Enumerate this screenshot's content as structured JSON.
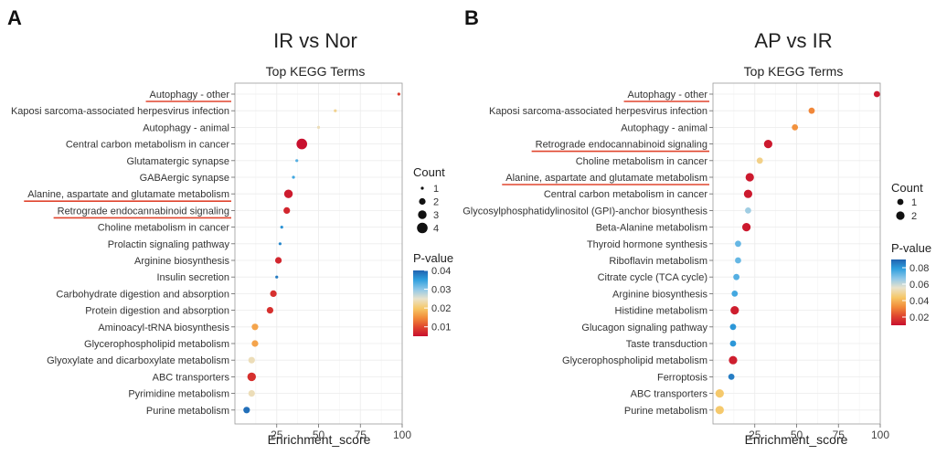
{
  "chart_data": [
    {
      "panel": "A",
      "type": "scatter",
      "title": "IR vs Nor",
      "subtitle": "Top KEGG Terms",
      "xlabel": "Enrichment_score",
      "xlim": [
        0,
        100
      ],
      "xticks": [
        25,
        50,
        75,
        100
      ],
      "count_legend_title": "Count",
      "count_levels": [
        1,
        2,
        3,
        4
      ],
      "pvalue_legend_title": "P-value",
      "pvalue_range": [
        0.005,
        0.04
      ],
      "pvalue_ticks": [
        0.04,
        0.03,
        0.02,
        0.01
      ],
      "points": [
        {
          "term": "Autophagy - other",
          "score": 98,
          "count": 1,
          "pvalue": 0.009,
          "highlight": true
        },
        {
          "term": "Kaposi sarcoma-associated herpesvirus infection",
          "score": 60,
          "count": 1,
          "pvalue": 0.022,
          "highlight": false
        },
        {
          "term": "Autophagy - animal",
          "score": 50,
          "count": 1,
          "pvalue": 0.024,
          "highlight": false
        },
        {
          "term": "Central carbon metabolism in cancer",
          "score": 40,
          "count": 4,
          "pvalue": 0.005,
          "highlight": false
        },
        {
          "term": "Glutamatergic synapse",
          "score": 37,
          "count": 1,
          "pvalue": 0.033,
          "highlight": false
        },
        {
          "term": "GABAergic synapse",
          "score": 35,
          "count": 1,
          "pvalue": 0.034,
          "highlight": false
        },
        {
          "term": "Alanine, aspartate and glutamate metabolism",
          "score": 32,
          "count": 3,
          "pvalue": 0.006,
          "highlight": true
        },
        {
          "term": "Retrograde endocannabinoid signaling",
          "score": 31,
          "count": 2,
          "pvalue": 0.007,
          "highlight": true
        },
        {
          "term": "Choline metabolism in cancer",
          "score": 28,
          "count": 1,
          "pvalue": 0.036,
          "highlight": false
        },
        {
          "term": "Prolactin signaling pathway",
          "score": 27,
          "count": 1,
          "pvalue": 0.037,
          "highlight": false
        },
        {
          "term": "Arginine biosynthesis",
          "score": 26,
          "count": 2,
          "pvalue": 0.007,
          "highlight": false
        },
        {
          "term": "Insulin secretion",
          "score": 25,
          "count": 1,
          "pvalue": 0.038,
          "highlight": false
        },
        {
          "term": "Carbohydrate digestion and absorption",
          "score": 23,
          "count": 2,
          "pvalue": 0.008,
          "highlight": false
        },
        {
          "term": "Protein digestion and absorption",
          "score": 21,
          "count": 2,
          "pvalue": 0.008,
          "highlight": false
        },
        {
          "term": "Aminoacyl-tRNA biosynthesis",
          "score": 12,
          "count": 2,
          "pvalue": 0.017,
          "highlight": false
        },
        {
          "term": "Glycerophospholipid metabolism",
          "score": 12,
          "count": 2,
          "pvalue": 0.017,
          "highlight": false
        },
        {
          "term": "Glyoxylate and dicarboxylate metabolism",
          "score": 10,
          "count": 2,
          "pvalue": 0.024,
          "highlight": false
        },
        {
          "term": "ABC transporters",
          "score": 10,
          "count": 3,
          "pvalue": 0.008,
          "highlight": false
        },
        {
          "term": "Pyrimidine metabolism",
          "score": 10,
          "count": 2,
          "pvalue": 0.024,
          "highlight": false
        },
        {
          "term": "Purine metabolism",
          "score": 7,
          "count": 2,
          "pvalue": 0.039,
          "highlight": false
        }
      ]
    },
    {
      "panel": "B",
      "type": "scatter",
      "title": "AP vs IR",
      "subtitle": "Top KEGG Terms",
      "xlabel": "Enrichment_score",
      "xlim": [
        0,
        100
      ],
      "xticks": [
        25,
        50,
        75,
        100
      ],
      "count_legend_title": "Count",
      "count_levels": [
        1,
        2
      ],
      "pvalue_legend_title": "P-value",
      "pvalue_range": [
        0.01,
        0.09
      ],
      "pvalue_ticks": [
        0.08,
        0.06,
        0.04,
        0.02
      ],
      "points": [
        {
          "term": "Autophagy - other",
          "score": 98,
          "count": 1,
          "pvalue": 0.012,
          "highlight": true
        },
        {
          "term": "Kaposi sarcoma-associated herpesvirus infection",
          "score": 59,
          "count": 1,
          "pvalue": 0.032,
          "highlight": false
        },
        {
          "term": "Autophagy - animal",
          "score": 49,
          "count": 1,
          "pvalue": 0.034,
          "highlight": false
        },
        {
          "term": "Retrograde endocannabinoid signaling",
          "score": 33,
          "count": 2,
          "pvalue": 0.012,
          "highlight": true
        },
        {
          "term": "Choline metabolism in cancer",
          "score": 28,
          "count": 1,
          "pvalue": 0.048,
          "highlight": false
        },
        {
          "term": "Alanine, aspartate and glutamate metabolism",
          "score": 22,
          "count": 2,
          "pvalue": 0.012,
          "highlight": true
        },
        {
          "term": "Central carbon metabolism in cancer",
          "score": 21,
          "count": 2,
          "pvalue": 0.012,
          "highlight": false
        },
        {
          "term": "Glycosylphosphatidylinositol (GPI)-anchor biosynthesis",
          "score": 21,
          "count": 1,
          "pvalue": 0.065,
          "highlight": false
        },
        {
          "term": "Beta-Alanine metabolism",
          "score": 20,
          "count": 2,
          "pvalue": 0.012,
          "highlight": false
        },
        {
          "term": "Thyroid hormone synthesis",
          "score": 15,
          "count": 1,
          "pvalue": 0.072,
          "highlight": false
        },
        {
          "term": "Riboflavin metabolism",
          "score": 15,
          "count": 1,
          "pvalue": 0.072,
          "highlight": false
        },
        {
          "term": "Citrate cycle (TCA cycle)",
          "score": 14,
          "count": 1,
          "pvalue": 0.074,
          "highlight": false
        },
        {
          "term": "Arginine biosynthesis",
          "score": 13,
          "count": 1,
          "pvalue": 0.076,
          "highlight": false
        },
        {
          "term": "Histidine metabolism",
          "score": 13,
          "count": 2,
          "pvalue": 0.013,
          "highlight": false
        },
        {
          "term": "Glucagon signaling pathway",
          "score": 12,
          "count": 1,
          "pvalue": 0.08,
          "highlight": false
        },
        {
          "term": "Taste transduction",
          "score": 12,
          "count": 1,
          "pvalue": 0.08,
          "highlight": false
        },
        {
          "term": "Glycerophospholipid metabolism",
          "score": 12,
          "count": 2,
          "pvalue": 0.013,
          "highlight": false
        },
        {
          "term": "Ferroptosis",
          "score": 11,
          "count": 1,
          "pvalue": 0.085,
          "highlight": false
        },
        {
          "term": "ABC transporters",
          "score": 4,
          "count": 2,
          "pvalue": 0.045,
          "highlight": false
        },
        {
          "term": "Purine metabolism",
          "score": 4,
          "count": 2,
          "pvalue": 0.045,
          "highlight": false
        }
      ]
    }
  ],
  "colors": {
    "gradient": [
      "#c8102e",
      "#e0462e",
      "#f28c3a",
      "#f6c766",
      "#e9e3cc",
      "#8fc8e8",
      "#2e9fde",
      "#1f63b0"
    ],
    "highlight_line": "#e0452e",
    "grid": "#ececec",
    "frame": "#9a9a9a"
  }
}
